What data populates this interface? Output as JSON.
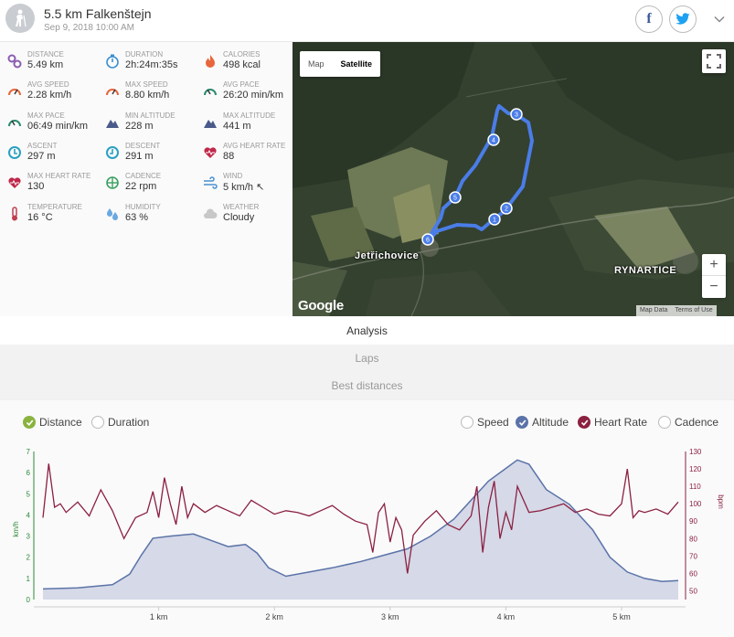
{
  "header": {
    "title": "5.5 km Falkenštejn",
    "date": "Sep 9, 2018 10:00 AM",
    "avatar_icon": "hiker-icon",
    "facebook_icon": "facebook-icon",
    "twitter_icon": "twitter-icon",
    "expand_icon": "chevron-down-icon"
  },
  "stats": [
    {
      "label": "DISTANCE",
      "value": "5.49 km",
      "icon": "distance-icon",
      "color": "#8b5db0"
    },
    {
      "label": "DURATION",
      "value": "2h:24m:35s",
      "icon": "stopwatch-icon",
      "color": "#3a8fd0"
    },
    {
      "label": "CALORIES",
      "value": "498 kcal",
      "icon": "flame-icon",
      "color": "#e8663d"
    },
    {
      "label": "AVG SPEED",
      "value": "2.28 km/h",
      "icon": "speedometer-icon",
      "color": "#e8663d"
    },
    {
      "label": "MAX SPEED",
      "value": "8.80 km/h",
      "icon": "speedometer-icon",
      "color": "#e8663d"
    },
    {
      "label": "AVG PACE",
      "value": "26:20 min/km",
      "icon": "pace-icon",
      "color": "#2a8c6f"
    },
    {
      "label": "MAX PACE",
      "value": "06:49 min/km",
      "icon": "pace-icon",
      "color": "#2a8c6f"
    },
    {
      "label": "MIN ALTITUDE",
      "value": "228 m",
      "icon": "mountain-icon",
      "color": "#4a5a8a"
    },
    {
      "label": "MAX ALTITUDE",
      "value": "441 m",
      "icon": "mountain-icon",
      "color": "#4a5a8a"
    },
    {
      "label": "ASCENT",
      "value": "297 m",
      "icon": "ascent-icon",
      "color": "#2aa0c0"
    },
    {
      "label": "DESCENT",
      "value": "291 m",
      "icon": "descent-icon",
      "color": "#2aa0c0"
    },
    {
      "label": "AVG HEART RATE",
      "value": "88",
      "icon": "heart-icon",
      "color": "#c0284a"
    },
    {
      "label": "MAX HEART RATE",
      "value": "130",
      "icon": "heart-icon",
      "color": "#c0284a"
    },
    {
      "label": "CADENCE",
      "value": "22 rpm",
      "icon": "cadence-icon",
      "color": "#3aa060"
    },
    {
      "label": "WIND",
      "value": "5 km/h ↖",
      "icon": "wind-icon",
      "color": "#4a90d0"
    },
    {
      "label": "TEMPERATURE",
      "value": "16 °C",
      "icon": "thermometer-icon",
      "color": "#c04050"
    },
    {
      "label": "HUMIDITY",
      "value": "63 %",
      "icon": "drops-icon",
      "color": "#6aa8e0"
    },
    {
      "label": "WEATHER",
      "value": "Cloudy",
      "icon": "cloud-icon",
      "color": "#c8c8c8"
    }
  ],
  "map": {
    "type_map": "Map",
    "type_satellite": "Satellite",
    "zoom_in": "+",
    "zoom_out": "−",
    "logo": "Google",
    "map_data": "Map Data",
    "terms": "Terms of Use",
    "places": [
      "Jetřichovice",
      "RYNARTICE"
    ],
    "markers": [
      "1",
      "2",
      "3",
      "4",
      "5",
      "6"
    ],
    "route_color": "#4a7de8"
  },
  "tabs": [
    "Analysis",
    "Laps",
    "Best distances"
  ],
  "toggles": {
    "distance": "Distance",
    "duration": "Duration",
    "speed": "Speed",
    "altitude": "Altitude",
    "heart_rate": "Heart Rate",
    "cadence": "Cadence"
  },
  "chart_data": {
    "type": "line",
    "xlabel": "",
    "x_ticks": [
      "1 km",
      "2 km",
      "3 km",
      "4 km",
      "5 km"
    ],
    "x_range": [
      0,
      5.49
    ],
    "left_axis": {
      "label": "km/h",
      "ticks": [
        "0",
        "1",
        "2",
        "3",
        "4",
        "5",
        "6",
        "7"
      ],
      "range": [
        0,
        7
      ]
    },
    "right_axis": {
      "label": "bpm",
      "ticks": [
        "50",
        "60",
        "70",
        "80",
        "90",
        "100",
        "110",
        "120",
        "130"
      ],
      "range": [
        45,
        130
      ]
    },
    "series": [
      {
        "name": "Altitude",
        "kind": "area",
        "color": "#5b73a8",
        "fill": "#d5d9e8",
        "x": [
          0,
          0.3,
          0.6,
          0.75,
          0.85,
          0.95,
          1.1,
          1.3,
          1.45,
          1.6,
          1.75,
          1.85,
          1.95,
          2.1,
          2.3,
          2.5,
          2.75,
          2.95,
          3.15,
          3.35,
          3.55,
          3.7,
          3.85,
          4.0,
          4.1,
          4.2,
          4.35,
          4.55,
          4.75,
          4.9,
          5.05,
          5.2,
          5.35,
          5.49
        ],
        "y": [
          0.5,
          0.55,
          0.7,
          1.2,
          2.1,
          2.9,
          3.0,
          3.1,
          2.8,
          2.5,
          2.6,
          2.2,
          1.5,
          1.1,
          1.3,
          1.5,
          1.8,
          2.1,
          2.4,
          3.0,
          3.8,
          4.7,
          5.6,
          6.2,
          6.6,
          6.4,
          5.2,
          4.5,
          3.3,
          2.0,
          1.3,
          1.0,
          0.85,
          0.9
        ]
      },
      {
        "name": "Heart Rate",
        "kind": "line",
        "color": "#8b2040",
        "x": [
          0,
          0.05,
          0.1,
          0.15,
          0.2,
          0.3,
          0.4,
          0.5,
          0.6,
          0.7,
          0.8,
          0.9,
          0.95,
          1.0,
          1.05,
          1.1,
          1.15,
          1.2,
          1.25,
          1.3,
          1.4,
          1.5,
          1.6,
          1.7,
          1.8,
          1.9,
          2.0,
          2.1,
          2.2,
          2.3,
          2.4,
          2.5,
          2.6,
          2.7,
          2.8,
          2.85,
          2.9,
          2.95,
          3.0,
          3.05,
          3.1,
          3.15,
          3.2,
          3.3,
          3.4,
          3.5,
          3.6,
          3.7,
          3.75,
          3.8,
          3.85,
          3.9,
          3.95,
          4.0,
          4.05,
          4.1,
          4.2,
          4.3,
          4.4,
          4.5,
          4.6,
          4.7,
          4.8,
          4.9,
          5.0,
          5.05,
          5.1,
          5.15,
          5.2,
          5.3,
          5.4,
          5.49
        ],
        "y": [
          92,
          123,
          98,
          100,
          95,
          101,
          93,
          108,
          96,
          80,
          92,
          95,
          107,
          92,
          115,
          100,
          88,
          110,
          92,
          100,
          95,
          99,
          96,
          93,
          102,
          98,
          94,
          96,
          95,
          93,
          96,
          99,
          94,
          90,
          88,
          72,
          95,
          100,
          78,
          92,
          85,
          60,
          82,
          90,
          96,
          88,
          85,
          93,
          110,
          72,
          98,
          113,
          80,
          95,
          85,
          110,
          95,
          96,
          98,
          100,
          95,
          97,
          94,
          93,
          100,
          120,
          92,
          96,
          95,
          97,
          94,
          101
        ]
      }
    ]
  }
}
